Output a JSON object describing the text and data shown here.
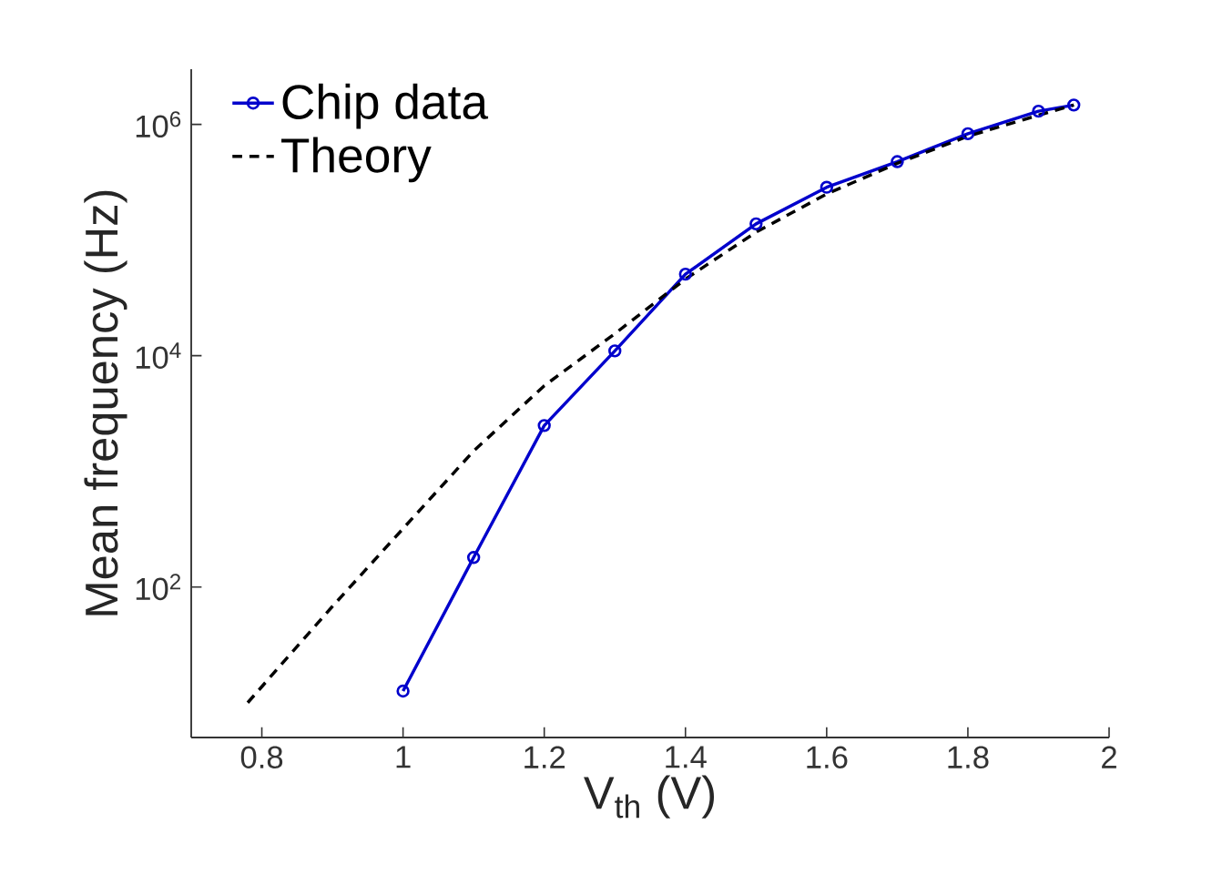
{
  "chart_data": {
    "type": "line",
    "xlabel": "V$_{th}$ (V)",
    "ylabel": "Mean frequency (Hz)",
    "log": "y",
    "legend": "top left",
    "xlim": [
      0.7,
      2
    ],
    "xticks": [
      0.8,
      1,
      1.2,
      1.4,
      1.6,
      1.8,
      2
    ],
    "ylim": [
      5,
      3000000
    ],
    "yticks": [
      {
        "value": 100,
        "label": "10$^{2}$"
      },
      {
        "value": 10000,
        "label": "10$^{4}$"
      },
      {
        "value": 1000000,
        "label": "10$^{6}$"
      }
    ],
    "series": [
      {
        "name": "Chip data",
        "color": "#0000cc",
        "marker": "circle",
        "line_style": "solid",
        "x": [
          1.0,
          1.1,
          1.2,
          1.3,
          1.4,
          1.5,
          1.6,
          1.7,
          1.8,
          1.9,
          1.95
        ],
        "values": [
          12.6,
          180,
          2490,
          11000,
          50700,
          138000,
          286000,
          476000,
          830000,
          1300000,
          1470000
        ]
      },
      {
        "name": "Theory",
        "color": "#000000",
        "marker": "none",
        "line_style": "dashed",
        "x": [
          0.78,
          0.9,
          1.0,
          1.1,
          1.2,
          1.3,
          1.4,
          1.5,
          1.6,
          1.7,
          1.8,
          1.9,
          1.95
        ],
        "values": [
          10,
          68,
          320,
          1500,
          5500,
          15500,
          46000,
          117000,
          250000,
          460000,
          790000,
          1200000,
          1470000
        ]
      }
    ]
  }
}
